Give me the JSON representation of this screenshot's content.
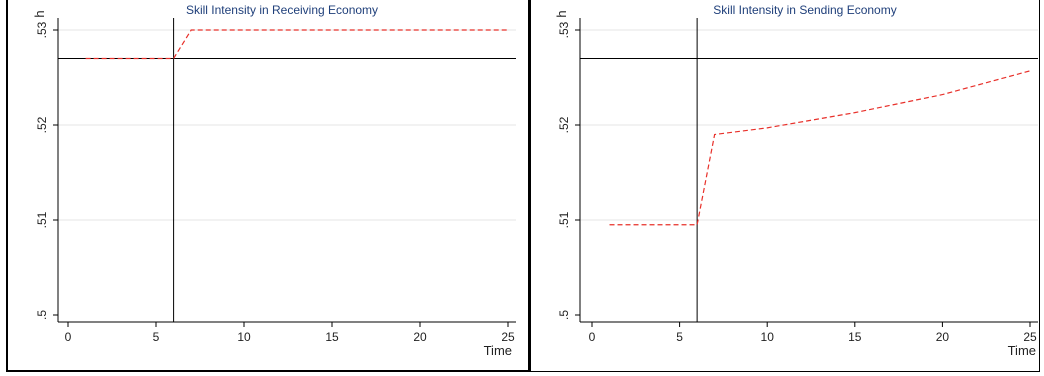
{
  "chart_data": [
    {
      "type": "line",
      "title": "Skill Intensity in Receiving Economy",
      "xlabel": "Time",
      "ylabel": "h",
      "xlim": [
        0,
        25
      ],
      "ylim": [
        0.5,
        0.53
      ],
      "xticks": [
        0,
        5,
        10,
        15,
        20,
        25
      ],
      "xtick_labels": [
        "0",
        "5",
        "10",
        "15",
        "20",
        "25"
      ],
      "yticks": [
        0.5,
        0.51,
        0.52,
        0.53
      ],
      "ytick_labels": [
        ".5",
        ".51",
        ".52",
        ".53"
      ],
      "grid": true,
      "vline_x": 6,
      "hline_y": 0.527,
      "series": [
        {
          "color": "#e8302a",
          "style": "dashed",
          "x": [
            1,
            6,
            7,
            25
          ],
          "y": [
            0.527,
            0.527,
            0.53,
            0.53
          ]
        }
      ]
    },
    {
      "type": "line",
      "title": "Skill Intensity in Sending Economy",
      "xlabel": "Time",
      "ylabel": "h",
      "xlim": [
        0,
        25
      ],
      "ylim": [
        0.5,
        0.53
      ],
      "xticks": [
        0,
        5,
        10,
        15,
        20,
        25
      ],
      "xtick_labels": [
        "0",
        "5",
        "10",
        "15",
        "20",
        "25"
      ],
      "yticks": [
        0.5,
        0.51,
        0.52,
        0.53
      ],
      "ytick_labels": [
        ".5",
        ".51",
        ".52",
        ".53"
      ],
      "grid": true,
      "vline_x": 6,
      "hline_y": 0.527,
      "series": [
        {
          "color": "#e8302a",
          "style": "dashed",
          "x": [
            1,
            6,
            7,
            10,
            15,
            20,
            25
          ],
          "y": [
            0.5095,
            0.5095,
            0.519,
            0.5197,
            0.5213,
            0.5232,
            0.5257
          ]
        }
      ]
    }
  ]
}
